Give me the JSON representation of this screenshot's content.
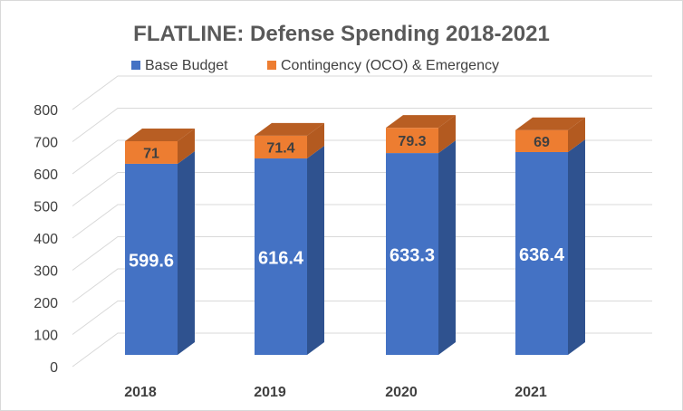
{
  "chart_data": {
    "type": "bar",
    "stacked": true,
    "style": "3d-column",
    "title": "FLATLINE: Defense Spending 2018-2021",
    "categories": [
      "2018",
      "2019",
      "2020",
      "2021"
    ],
    "series": [
      {
        "name": "Base Budget",
        "values": [
          599.6,
          616.4,
          633.3,
          636.4
        ],
        "color": "#4472C4",
        "labels": [
          "599.6",
          "616.4",
          "633.3",
          "636.4"
        ]
      },
      {
        "name": "Contingency (OCO) & Emergency",
        "values": [
          71,
          71.4,
          79.3,
          69
        ],
        "color": "#ED7D31",
        "labels": [
          "71",
          "71.4",
          "79.3",
          "69"
        ]
      }
    ],
    "yticks": [
      "0",
      "100",
      "200",
      "300",
      "400",
      "500",
      "600",
      "700",
      "800"
    ],
    "ylim": [
      0,
      800
    ],
    "grid": true,
    "legend": "top"
  }
}
